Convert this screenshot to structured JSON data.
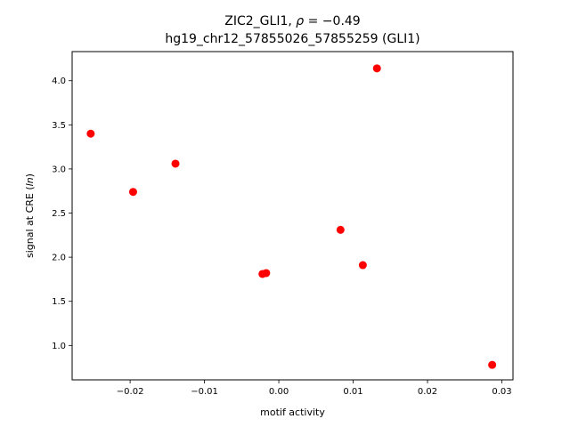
{
  "chart_data": {
    "type": "scatter",
    "title_line1_prefix": "ZIC2_GLI1, ",
    "title_line1_rho": "ρ",
    "title_line1_suffix": " = −0.49",
    "title_line2": "hg19_chr12_57855026_57855259 (GLI1)",
    "xlabel": "motif activity",
    "ylabel_prefix": "signal at CRE (",
    "ylabel_italic": "ln",
    "ylabel_suffix": ")",
    "xlim": [
      -0.0278,
      0.0315
    ],
    "ylim": [
      0.61,
      4.33
    ],
    "xticks": [
      -0.02,
      -0.01,
      0.0,
      0.01,
      0.02,
      0.03
    ],
    "xtick_labels": [
      "−0.02",
      "−0.01",
      "0.00",
      "0.01",
      "0.02",
      "0.03"
    ],
    "yticks": [
      1.0,
      1.5,
      2.0,
      2.5,
      3.0,
      3.5,
      4.0
    ],
    "ytick_labels": [
      "1.0",
      "1.5",
      "2.0",
      "2.5",
      "3.0",
      "3.5",
      "4.0"
    ],
    "marker_color": "#ff0000",
    "grid": false,
    "points": [
      {
        "x": -0.0253,
        "y": 3.4
      },
      {
        "x": -0.0196,
        "y": 2.74
      },
      {
        "x": -0.0139,
        "y": 3.06
      },
      {
        "x": -0.0022,
        "y": 1.81
      },
      {
        "x": -0.0017,
        "y": 1.82
      },
      {
        "x": 0.0083,
        "y": 2.31
      },
      {
        "x": 0.0113,
        "y": 1.91
      },
      {
        "x": 0.0132,
        "y": 4.14
      },
      {
        "x": 0.0287,
        "y": 0.78
      }
    ]
  }
}
